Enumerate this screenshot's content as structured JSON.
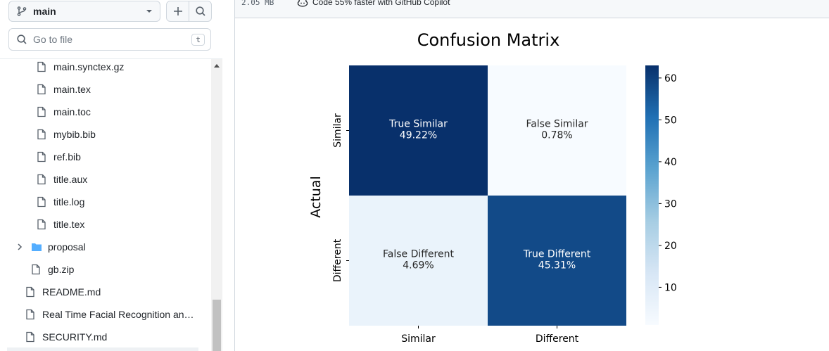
{
  "sidebar": {
    "branch": "main",
    "search_placeholder": "Go to file",
    "search_shortcut": "t",
    "items": [
      {
        "name": "main.synctex.gz",
        "type": "file"
      },
      {
        "name": "main.tex",
        "type": "file"
      },
      {
        "name": "main.toc",
        "type": "file"
      },
      {
        "name": "mybib.bib",
        "type": "file"
      },
      {
        "name": "ref.bib",
        "type": "file"
      },
      {
        "name": "title.aux",
        "type": "file"
      },
      {
        "name": "title.log",
        "type": "file"
      },
      {
        "name": "title.tex",
        "type": "file"
      },
      {
        "name": "proposal",
        "type": "folder"
      },
      {
        "name": "gb.zip",
        "type": "file"
      },
      {
        "name": "README.md",
        "type": "file"
      },
      {
        "name": "Real Time Facial Recognition and...",
        "type": "file"
      },
      {
        "name": "SECURITY.md",
        "type": "file"
      }
    ]
  },
  "filebar": {
    "size": "2.05 MB",
    "copilot_text": "Code 55% faster with GitHub Copilot"
  },
  "colors": {
    "dark_blue": "#08306b",
    "mid_blue": "#0a4a90",
    "light_blue": "#e5eff9",
    "lightest_blue": "#f7fbff",
    "folder_blue": "#54aeff"
  },
  "chart_data": {
    "type": "heatmap",
    "title": "Confusion Matrix",
    "ylabel": "Actual",
    "xlabel": "",
    "x_categories": [
      "Similar",
      "Different"
    ],
    "y_categories": [
      "Similar",
      "Different"
    ],
    "cells": [
      {
        "row": 0,
        "col": 0,
        "label": "True Similar",
        "percent": "49.22%",
        "value": 63
      },
      {
        "row": 0,
        "col": 1,
        "label": "False Similar",
        "percent": "0.78%",
        "value": 1
      },
      {
        "row": 1,
        "col": 0,
        "label": "False Different",
        "percent": "4.69%",
        "value": 6
      },
      {
        "row": 1,
        "col": 1,
        "label": "True Different",
        "percent": "45.31%",
        "value": 58
      }
    ],
    "colorbar": {
      "min": 1,
      "max": 63,
      "ticks": [
        10,
        20,
        30,
        40,
        50,
        60
      ]
    }
  }
}
